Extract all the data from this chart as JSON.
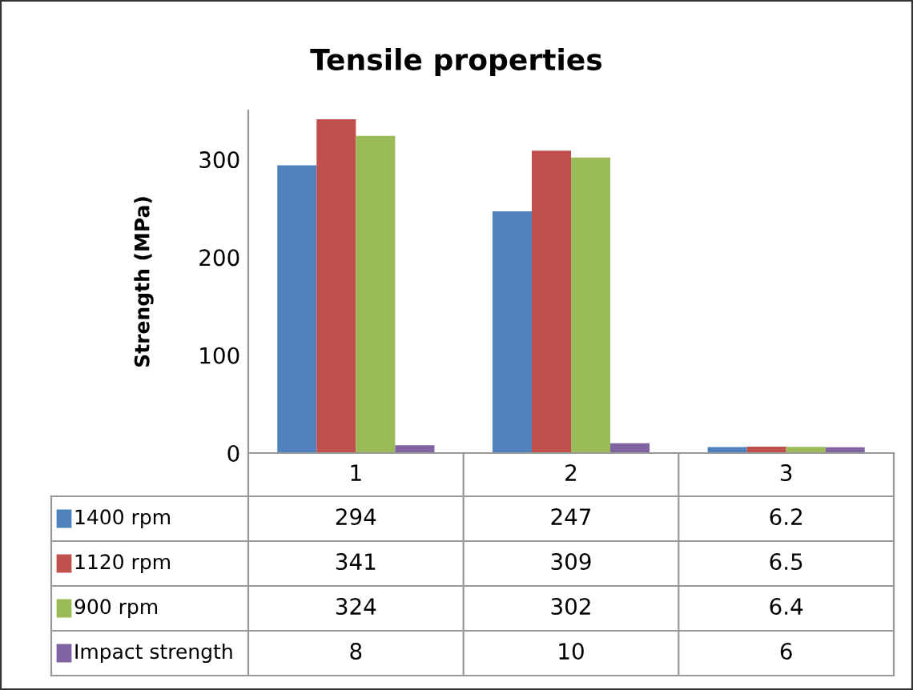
{
  "chart_data": {
    "type": "bar",
    "title": "Tensile properties",
    "ylabel": "Strength (MPa)",
    "categories": [
      "1",
      "2",
      "3"
    ],
    "series": [
      {
        "name": "1400 rpm",
        "color": "#4f81bd",
        "values": [
          294,
          247,
          6.2
        ]
      },
      {
        "name": "1120 rpm",
        "color": "#c0504d",
        "values": [
          341,
          309,
          6.5
        ]
      },
      {
        "name": "900 rpm",
        "color": "#9bbb59",
        "values": [
          324,
          302,
          6.4
        ]
      },
      {
        "name": "Impact strength",
        "color": "#8064a2",
        "values": [
          8,
          10,
          6
        ]
      }
    ],
    "ylim": [
      0,
      350
    ],
    "yticks": [
      0,
      100,
      200,
      300
    ],
    "grid": false,
    "legend": "bottom",
    "data_labels": true
  }
}
